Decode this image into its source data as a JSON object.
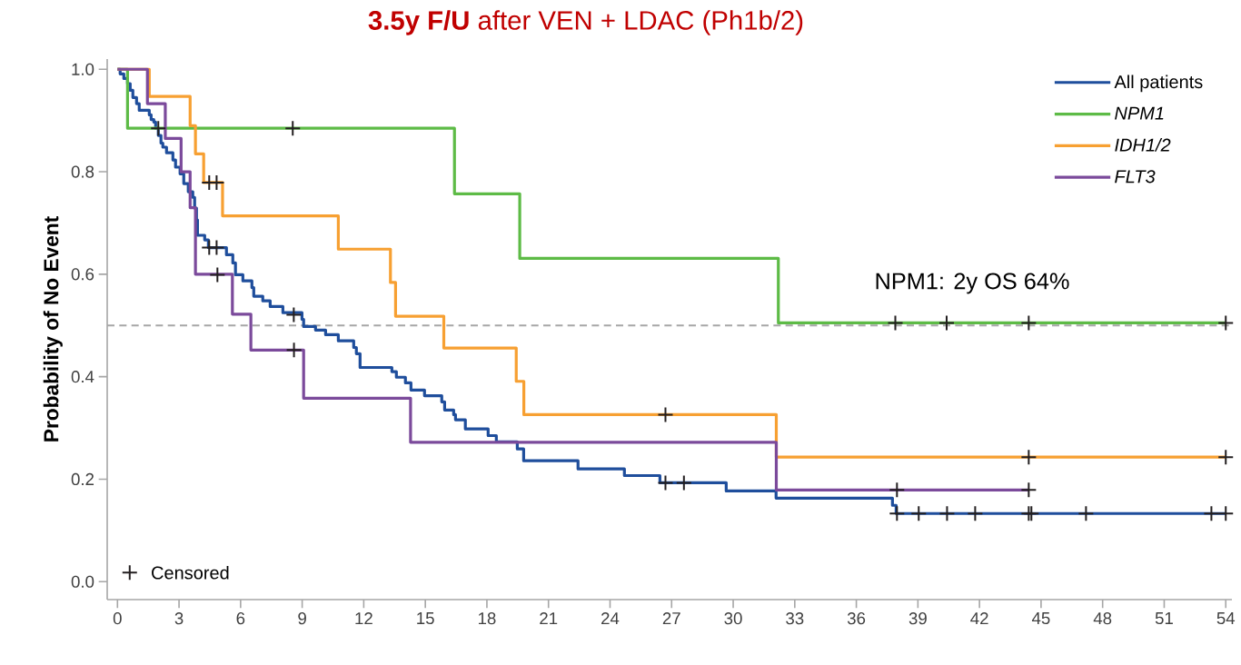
{
  "chart_data": {
    "type": "step",
    "title": "**3.5y F/U** after VEN + LDAC (Ph1b/2)",
    "ylabel": "Probability of No Event",
    "xlim": [
      -0.5,
      54.3
    ],
    "ylim": [
      -0.035,
      1.02
    ],
    "xticks": [
      0,
      3,
      6,
      9,
      12,
      15,
      18,
      21,
      24,
      27,
      30,
      33,
      36,
      39,
      42,
      45,
      48,
      51,
      54
    ],
    "yticks": [
      {
        "value": 0,
        "label": "0.0"
      },
      {
        "value": 0.2,
        "label": "0.2"
      },
      {
        "value": 0.4,
        "label": "0.4"
      },
      {
        "value": 0.6,
        "label": "0.6"
      },
      {
        "value": 0.8,
        "label": "0.8"
      },
      {
        "value": 1.0,
        "label": "1.0"
      }
    ],
    "grid": false,
    "legend": "top right",
    "ref_lines": [
      {
        "axis": "y",
        "value": 0.5,
        "color": "#a6a6a6",
        "line_style": "dashed"
      }
    ],
    "annotations": [
      "NPM1: 2y OS 64%"
    ],
    "series": [
      {
        "name": "All patients",
        "color": "#1f4e9c",
        "x": [
          0,
          0.13,
          0.31,
          0.49,
          0.62,
          0.75,
          0.93,
          1.06,
          1.55,
          1.64,
          1.77,
          1.86,
          1.99,
          2.12,
          2.21,
          2.39,
          2.7,
          2.83,
          3.05,
          3.23,
          3.45,
          3.67,
          3.76,
          3.85,
          3.9,
          4.25,
          4.43,
          5.31,
          5.62,
          5.75,
          6.11,
          6.55,
          6.64,
          7.08,
          7.44,
          8.06,
          8.99,
          9.07,
          9.65,
          10.14,
          10.76,
          11.51,
          11.64,
          11.82,
          13.37,
          13.59,
          14.03,
          14.3,
          14.96,
          15.8,
          15.94,
          16.38,
          16.47,
          16.95,
          18.06,
          18.46,
          19.48,
          19.79,
          22.44,
          24.7,
          26.43,
          29.66,
          32.09,
          37.76,
          37.94,
          54
        ],
        "values": [
          1.0,
          0.991,
          0.982,
          0.972,
          0.959,
          0.945,
          0.933,
          0.92,
          0.911,
          0.902,
          0.897,
          0.885,
          0.871,
          0.856,
          0.848,
          0.837,
          0.823,
          0.809,
          0.796,
          0.777,
          0.761,
          0.75,
          0.729,
          0.706,
          0.676,
          0.667,
          0.652,
          0.638,
          0.622,
          0.599,
          0.587,
          0.574,
          0.557,
          0.548,
          0.537,
          0.525,
          0.512,
          0.498,
          0.491,
          0.482,
          0.47,
          0.457,
          0.445,
          0.418,
          0.41,
          0.399,
          0.388,
          0.374,
          0.363,
          0.351,
          0.335,
          0.326,
          0.316,
          0.298,
          0.285,
          0.273,
          0.259,
          0.236,
          0.22,
          0.207,
          0.193,
          0.177,
          0.163,
          0.149,
          0.133,
          0.133
        ]
      },
      {
        "name": "NPM1",
        "color": "#5dbb46",
        "x": [
          0,
          0.49,
          16.42,
          19.6,
          32.2,
          54
        ],
        "values": [
          1.0,
          0.885,
          0.757,
          0.631,
          0.505,
          0.505
        ]
      },
      {
        "name": "IDH1/2",
        "color": "#f7a032",
        "x": [
          0,
          1.55,
          3.54,
          3.8,
          4.2,
          5.12,
          10.76,
          13.3,
          13.55,
          15.9,
          19.43,
          19.8,
          32.1,
          54
        ],
        "values": [
          1.0,
          0.947,
          0.89,
          0.835,
          0.779,
          0.714,
          0.649,
          0.584,
          0.518,
          0.456,
          0.391,
          0.326,
          0.243,
          0.243
        ]
      },
      {
        "name": "FLT3",
        "color": "#7b4a9b",
        "x": [
          0,
          1.46,
          2.33,
          3.1,
          3.54,
          3.8,
          5.6,
          6.5,
          9.07,
          14.28,
          32.1,
          44.4
        ],
        "values": [
          1.0,
          0.933,
          0.865,
          0.8,
          0.73,
          0.6,
          0.522,
          0.452,
          0.358,
          0.272,
          0.179,
          0.179
        ]
      },
      {
        "name": "Censored",
        "type": "scatter",
        "marker": "cross",
        "color": "#231f20",
        "x": [
          1.99,
          4.47,
          4.83,
          8.59,
          26.7,
          27.6,
          37.98,
          39.04,
          40.42,
          41.79,
          44.4,
          44.53,
          47.19,
          53.3,
          54.0,
          8.54,
          37.9,
          40.4,
          44.4,
          54.0,
          4.47,
          4.83,
          26.7,
          44.4,
          54.0,
          4.87,
          8.6,
          37.98,
          44.4
        ],
        "values": [
          0.885,
          0.652,
          0.652,
          0.521,
          0.193,
          0.193,
          0.133,
          0.133,
          0.133,
          0.133,
          0.133,
          0.133,
          0.133,
          0.133,
          0.133,
          0.885,
          0.505,
          0.505,
          0.505,
          0.505,
          0.779,
          0.779,
          0.326,
          0.243,
          0.243,
          0.599,
          0.452,
          0.179,
          0.179
        ]
      }
    ]
  }
}
